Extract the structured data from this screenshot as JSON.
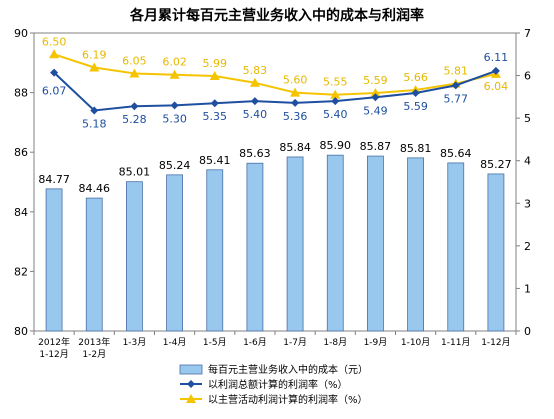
{
  "chart_data": {
    "type": "bar",
    "title": "各月累计每百元主营业务收入中的成本与利润率",
    "categories": [
      [
        "2012年",
        "1-12月"
      ],
      [
        "2013年",
        "1-2月"
      ],
      [
        "1-3月"
      ],
      [
        "1-4月"
      ],
      [
        "1-5月"
      ],
      [
        "1-6月"
      ],
      [
        "1-7月"
      ],
      [
        "1-8月"
      ],
      [
        "1-9月"
      ],
      [
        "1-10月"
      ],
      [
        "1-11月"
      ],
      [
        "1-12月"
      ]
    ],
    "left_axis": {
      "ylim": [
        80,
        90
      ],
      "ticks": [
        "80",
        "82",
        "84",
        "86",
        "88",
        "90"
      ]
    },
    "right_axis": {
      "ylim": [
        0,
        7
      ],
      "ticks": [
        "0",
        "1",
        "2",
        "3",
        "4",
        "5",
        "6",
        "7"
      ]
    },
    "series": [
      {
        "name": "每百元主营业务收入中的成本（元）",
        "type": "bar",
        "axis": "left",
        "color": "#99c8ee",
        "values": [
          84.77,
          84.46,
          85.01,
          85.24,
          85.41,
          85.63,
          85.84,
          85.9,
          85.87,
          85.81,
          85.64,
          85.27
        ],
        "labels": [
          "84.77",
          "84.46",
          "85.01",
          "85.24",
          "85.41",
          "85.63",
          "85.84",
          "85.90",
          "85.87",
          "85.81",
          "85.64",
          "85.27"
        ]
      },
      {
        "name": "以利润总额计算的利润率（%）",
        "type": "line",
        "axis": "right",
        "color": "#1f4fa0",
        "marker": "diamond",
        "values": [
          6.07,
          5.18,
          5.28,
          5.3,
          5.35,
          5.4,
          5.36,
          5.4,
          5.49,
          5.59,
          5.77,
          6.11
        ],
        "labels": [
          "6.07",
          "5.18",
          "5.28",
          "5.30",
          "5.35",
          "5.40",
          "5.36",
          "5.40",
          "5.49",
          "5.59",
          "5.77",
          "6.11"
        ]
      },
      {
        "name": "以主营活动利润计算的利润率（%）",
        "type": "line",
        "axis": "right",
        "color": "#f5c400",
        "marker": "triangle",
        "values": [
          6.5,
          6.19,
          6.05,
          6.02,
          5.99,
          5.83,
          5.6,
          5.55,
          5.59,
          5.66,
          5.81,
          6.04
        ],
        "labels": [
          "6.50",
          "6.19",
          "6.05",
          "6.02",
          "5.99",
          "5.83",
          "5.60",
          "5.55",
          "5.59",
          "5.66",
          "5.81",
          "6.04"
        ]
      }
    ],
    "legend_position": "bottom-center",
    "grid": false
  }
}
